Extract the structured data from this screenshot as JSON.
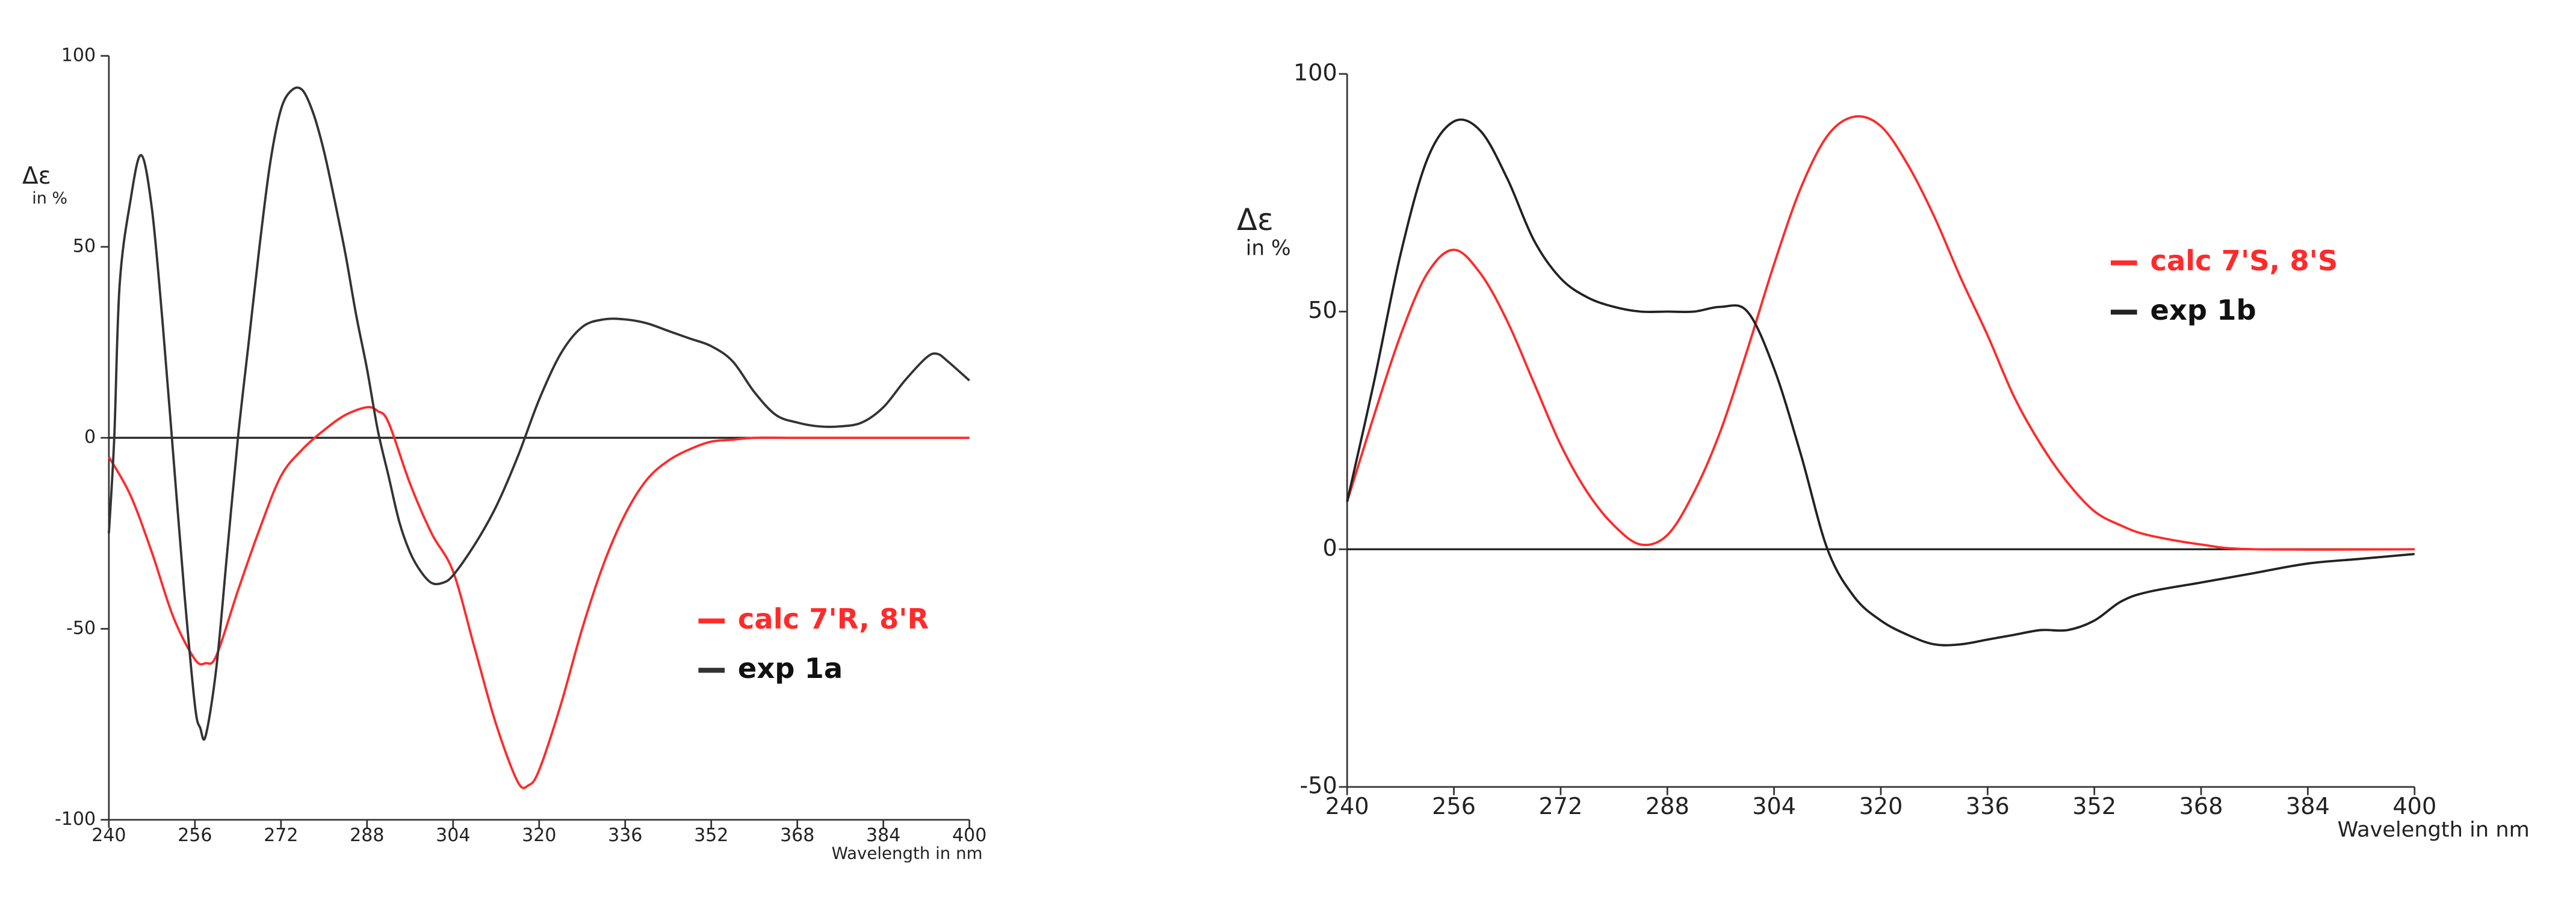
{
  "chart_data": [
    {
      "type": "line",
      "x_label": "Wavelength in nm",
      "y_label": "Δε",
      "y_label_sub": "in %",
      "xlim": [
        240,
        400
      ],
      "xticks": [
        240,
        256,
        272,
        288,
        304,
        320,
        336,
        352,
        368,
        384,
        400
      ],
      "ylim": [
        -100,
        100
      ],
      "yticks": [
        100,
        50,
        0,
        -50,
        -100
      ],
      "legend": "lower right",
      "series": [
        {
          "name": "calc 7'R, 8'R",
          "color": "#ff2a2a",
          "x": [
            240,
            244,
            248,
            252,
            256,
            258,
            260,
            264,
            268,
            272,
            276,
            280,
            284,
            288,
            290,
            292,
            296,
            300,
            304,
            308,
            312,
            316,
            318,
            320,
            324,
            328,
            332,
            336,
            340,
            344,
            348,
            352,
            356,
            360,
            368,
            380,
            400
          ],
          "values": [
            -5,
            -15,
            -30,
            -47,
            -58,
            -59,
            -57,
            -40,
            -24,
            -10,
            -3,
            2,
            6,
            8,
            7,
            4,
            -12,
            -25,
            -35,
            -55,
            -75,
            -90,
            -91,
            -87,
            -70,
            -50,
            -33,
            -20,
            -11,
            -6,
            -3,
            -1,
            -0.5,
            0,
            0,
            0,
            0
          ]
        },
        {
          "name": "exp 1a",
          "color": "#333333",
          "x": [
            240,
            241,
            242,
            244,
            246,
            248,
            250,
            252,
            254,
            256,
            257,
            258,
            260,
            262,
            264,
            266,
            268,
            270,
            272,
            274,
            276,
            278,
            280,
            282,
            284,
            286,
            288,
            290,
            292,
            294,
            296,
            298,
            300,
            302,
            304,
            308,
            312,
            316,
            320,
            324,
            328,
            332,
            336,
            340,
            344,
            348,
            352,
            356,
            360,
            364,
            368,
            372,
            376,
            380,
            384,
            388,
            392,
            394,
            396,
            400
          ],
          "values": [
            -25,
            0,
            40,
            62,
            74,
            60,
            30,
            -5,
            -40,
            -70,
            -76,
            -78,
            -60,
            -30,
            0,
            25,
            50,
            72,
            86,
            91,
            91,
            85,
            75,
            62,
            48,
            32,
            18,
            2,
            -10,
            -22,
            -30,
            -35,
            -38,
            -38,
            -36,
            -28,
            -18,
            -5,
            10,
            22,
            29,
            31,
            31,
            30,
            28,
            26,
            24,
            20,
            12,
            6,
            4,
            3,
            3,
            4,
            8,
            15,
            21,
            22,
            20,
            15
          ]
        }
      ]
    },
    {
      "type": "line",
      "x_label": "Wavelength in nm",
      "y_label": "Δε",
      "y_label_sub": "in %",
      "xlim": [
        240,
        400
      ],
      "xticks": [
        240,
        256,
        272,
        288,
        304,
        320,
        336,
        352,
        368,
        384,
        400
      ],
      "ylim": [
        -50,
        100
      ],
      "yticks": [
        100,
        50,
        0,
        -50
      ],
      "legend": "upper right",
      "series": [
        {
          "name": "calc 7'S, 8'S",
          "color": "#ff2a2a",
          "x": [
            240,
            244,
            248,
            252,
            256,
            260,
            264,
            268,
            272,
            276,
            280,
            284,
            288,
            292,
            296,
            300,
            304,
            308,
            312,
            316,
            320,
            324,
            328,
            332,
            336,
            340,
            344,
            348,
            352,
            356,
            360,
            368,
            376,
            400
          ],
          "values": [
            10,
            28,
            45,
            58,
            63,
            58,
            48,
            35,
            22,
            12,
            5,
            1,
            3,
            12,
            25,
            42,
            60,
            76,
            87,
            91,
            89,
            81,
            70,
            57,
            45,
            32,
            22,
            14,
            8,
            5,
            3,
            1,
            0,
            0
          ]
        },
        {
          "name": "exp 1b",
          "color": "#222222",
          "x": [
            240,
            244,
            248,
            252,
            256,
            260,
            264,
            268,
            272,
            276,
            280,
            284,
            288,
            292,
            296,
            300,
            304,
            308,
            312,
            316,
            320,
            324,
            328,
            332,
            336,
            340,
            344,
            348,
            352,
            356,
            360,
            368,
            376,
            384,
            392,
            400
          ],
          "values": [
            10,
            35,
            62,
            82,
            90,
            88,
            78,
            65,
            57,
            53,
            51,
            50,
            50,
            50,
            51,
            50,
            38,
            20,
            0,
            -10,
            -15,
            -18,
            -20,
            -20,
            -19,
            -18,
            -17,
            -17,
            -15,
            -11,
            -9,
            -7,
            -5,
            -3,
            -2,
            -1
          ]
        }
      ]
    }
  ]
}
